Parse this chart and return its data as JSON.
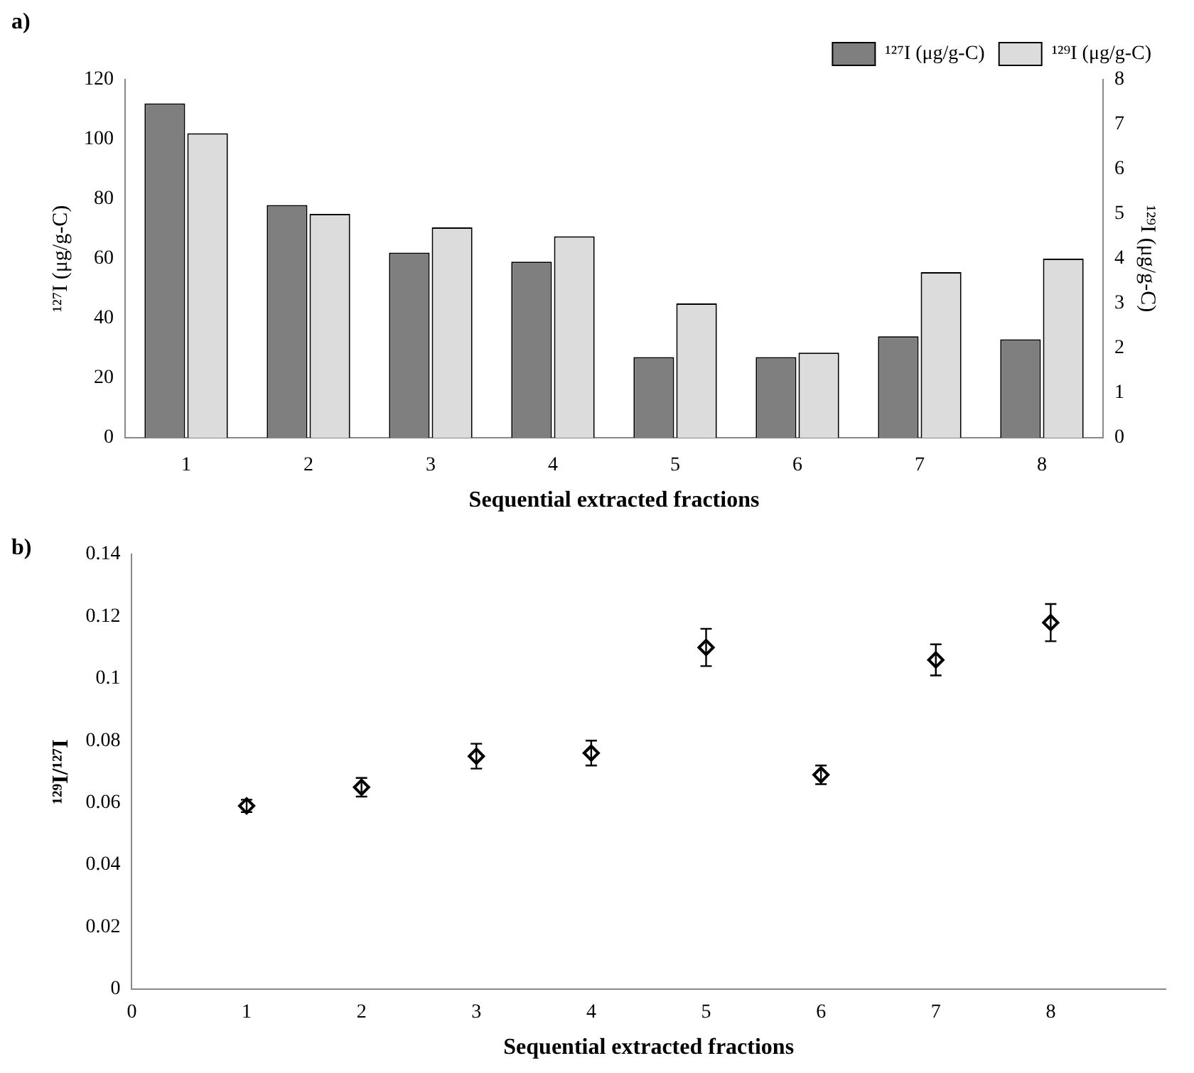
{
  "chart_data": [
    {
      "type": "bar",
      "xlabel": "Sequential extracted fractions",
      "ylabel": "¹²⁷I (μg/g-C)",
      "y2label": "¹²⁹I (μg/g-C)",
      "annotations": [
        "a)"
      ],
      "categories": [
        "1",
        "2",
        "3",
        "4",
        "5",
        "6",
        "7",
        "8"
      ],
      "series": [
        {
          "name": "¹²⁷I (μg/g-C)",
          "color": "#7f7f7f",
          "values": [
            112,
            78,
            62,
            59,
            27,
            27,
            34,
            33
          ]
        },
        {
          "name": "¹²⁹I (μg/g-C)",
          "color": "#dcdcdc",
          "axis": "y2",
          "values": [
            6.8,
            5.0,
            4.7,
            4.5,
            3.0,
            1.9,
            3.7,
            4.0
          ]
        }
      ],
      "ylim": [
        0,
        120
      ],
      "yticks": [
        0,
        20,
        40,
        60,
        80,
        100,
        120
      ],
      "y2lim": [
        0,
        8
      ],
      "y2ticks": [
        0,
        1,
        2,
        3,
        4,
        5,
        6,
        7,
        8
      ],
      "grid": false,
      "legend": "top right"
    },
    {
      "type": "scatter",
      "xlabel": "Sequential extracted fractions",
      "ylabel": "¹²⁹I/¹²⁷I",
      "annotations": [
        "b)"
      ],
      "x": [
        1,
        2,
        3,
        4,
        5,
        6,
        7,
        8
      ],
      "series": [
        {
          "color": "#000000",
          "values": [
            0.059,
            0.065,
            0.075,
            0.076,
            0.11,
            0.069,
            0.106,
            0.118
          ],
          "errors": [
            0.002,
            0.003,
            0.004,
            0.004,
            0.006,
            0.003,
            0.005,
            0.006
          ]
        }
      ],
      "xlim": [
        0,
        9
      ],
      "xticks": [
        0,
        1,
        2,
        3,
        4,
        5,
        6,
        7,
        8
      ],
      "ylim": [
        0,
        0.14
      ],
      "yticks": [
        0,
        0.02,
        0.04,
        0.06,
        0.08,
        0.1,
        0.12,
        0.14
      ],
      "grid": false,
      "legend": false,
      "marker": "diamond"
    }
  ]
}
